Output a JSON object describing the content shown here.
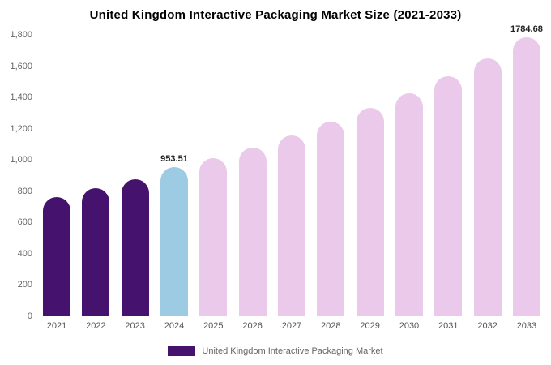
{
  "chart_data": {
    "type": "bar",
    "title": "United Kingdom Interactive Packaging Market Size (2021-2033)",
    "categories": [
      "2021",
      "2022",
      "2023",
      "2024",
      "2025",
      "2026",
      "2027",
      "2028",
      "2029",
      "2030",
      "2031",
      "2032",
      "2033"
    ],
    "values": [
      762,
      820,
      878,
      953.51,
      1010,
      1080,
      1158,
      1245,
      1334,
      1428,
      1536,
      1650,
      1784.68
    ],
    "xlabel": "",
    "ylabel": "",
    "ylim": [
      0,
      1800
    ],
    "ytick_step": 200,
    "ytick_labels": [
      "0",
      "200",
      "400",
      "600",
      "800",
      "1,000",
      "1,200",
      "1,400",
      "1,600",
      "1,800"
    ],
    "grid": false,
    "annotations": [
      {
        "category": "2024",
        "text": "953.51"
      },
      {
        "category": "2033",
        "text": "1784.68"
      }
    ],
    "colors": {
      "historical": "#45136e",
      "current": "#9dcbe4",
      "forecast": "#eac9ea"
    },
    "bar_color_roles": [
      "historical",
      "historical",
      "historical",
      "current",
      "forecast",
      "forecast",
      "forecast",
      "forecast",
      "forecast",
      "forecast",
      "forecast",
      "forecast",
      "forecast"
    ],
    "legend": [
      {
        "label": "United Kingdom Interactive Packaging Market",
        "color": "#45136e"
      }
    ],
    "legend_position": "bottom"
  }
}
